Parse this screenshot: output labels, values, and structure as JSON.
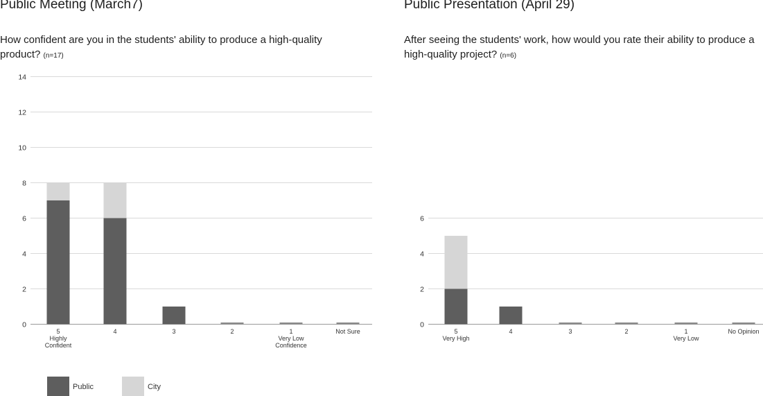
{
  "colors": {
    "public": "#5e5e5e",
    "city": "#d6d6d6",
    "grid": "#d9d9d9",
    "axis": "#999999"
  },
  "left": {
    "title": "Public Meeting (March7)",
    "question": "How confident are you in the students' ability to produce a high-quality product?",
    "n_label": "(n=17)"
  },
  "right": {
    "title": "Public Presentation (April 29)",
    "question": "After seeing the students' work, how would you rate their ability to produce a high-quality project?",
    "n_label": "(n=6)"
  },
  "legend": [
    {
      "name": "Public",
      "color": "#5e5e5e"
    },
    {
      "name": "City",
      "color": "#d6d6d6"
    }
  ],
  "chart_data": [
    {
      "type": "bar",
      "stacked": true,
      "title": "Public Meeting (March7)",
      "categories": [
        [
          "5",
          "Highly",
          "Confident"
        ],
        [
          "4"
        ],
        [
          "3"
        ],
        [
          "2"
        ],
        [
          "1",
          "Very Low",
          "Confidence"
        ],
        [
          "Not Sure"
        ]
      ],
      "series": [
        {
          "name": "Public",
          "values": [
            7,
            6,
            1,
            0,
            0,
            0
          ]
        },
        {
          "name": "City",
          "values": [
            1,
            2,
            0,
            0,
            0,
            0
          ]
        }
      ],
      "yticks": [
        0,
        2,
        4,
        6,
        8,
        10,
        12,
        14
      ],
      "ylim": [
        0,
        14
      ],
      "grid": true,
      "legend_position": "bottom-left"
    },
    {
      "type": "bar",
      "stacked": true,
      "title": "Public Presentation (April 29)",
      "categories": [
        [
          "5",
          "Very High"
        ],
        [
          "4"
        ],
        [
          "3"
        ],
        [
          "2"
        ],
        [
          "1",
          "Very Low"
        ],
        [
          "No Opinion"
        ]
      ],
      "series": [
        {
          "name": "Public",
          "values": [
            2,
            1,
            0,
            0,
            0,
            0
          ]
        },
        {
          "name": "City",
          "values": [
            3,
            0,
            0,
            0,
            0,
            0
          ]
        }
      ],
      "yticks": [
        0,
        2,
        4,
        6
      ],
      "ylim": [
        0,
        6
      ],
      "grid": true,
      "legend_position": "none"
    }
  ]
}
